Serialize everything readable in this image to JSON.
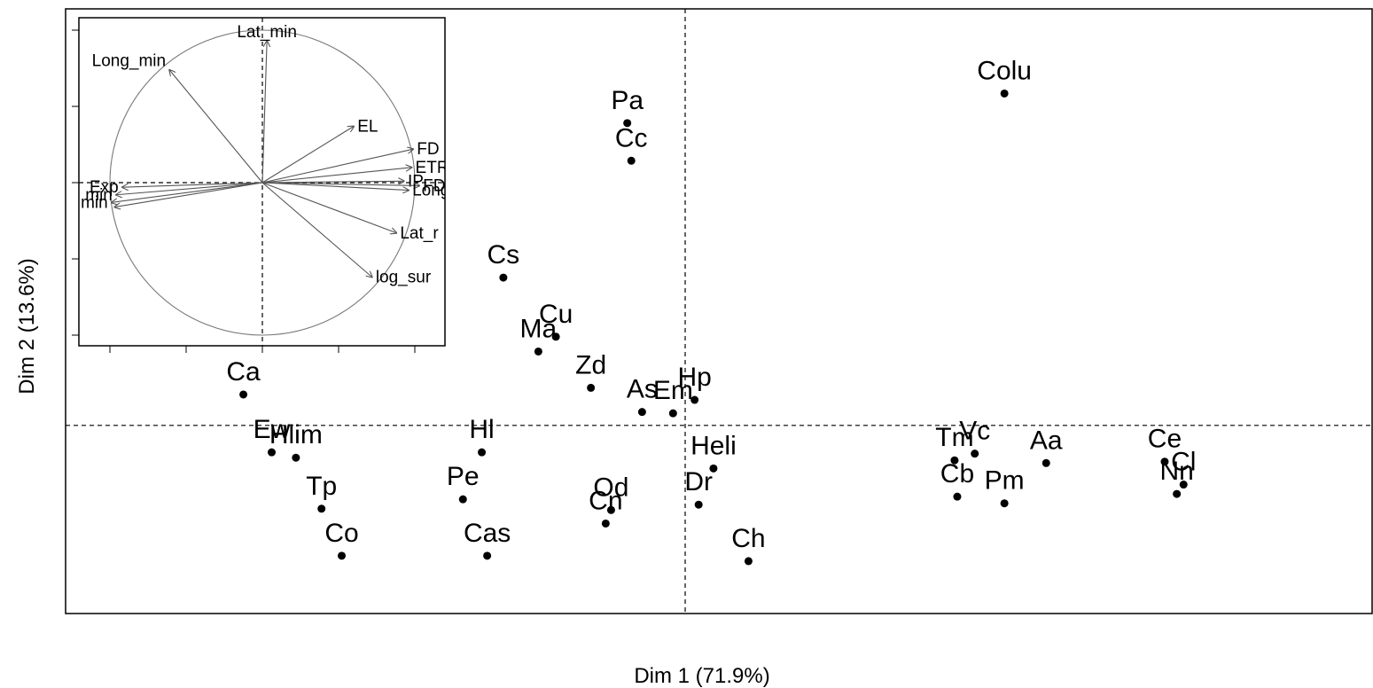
{
  "chart_data": [
    {
      "type": "scatter",
      "xlabel": "Dim 1 (71.9%)",
      "ylabel": "Dim 2 (13.6%)",
      "xlim": [
        -4.6,
        5.1
      ],
      "ylim": [
        -1.4,
        3.1
      ],
      "points": [
        {
          "label": "Colu",
          "x": 2.37,
          "y": 2.47
        },
        {
          "label": "Pa",
          "x": -0.43,
          "y": 2.25
        },
        {
          "label": "Cc",
          "x": -0.4,
          "y": 1.97
        },
        {
          "label": "Cs",
          "x": -1.35,
          "y": 1.1
        },
        {
          "label": "Cu",
          "x": -0.96,
          "y": 0.66
        },
        {
          "label": "Ma",
          "x": -1.09,
          "y": 0.55
        },
        {
          "label": "Zd",
          "x": -0.7,
          "y": 0.28
        },
        {
          "label": "As",
          "x": -0.32,
          "y": 0.1
        },
        {
          "label": "Em",
          "x": -0.09,
          "y": 0.09
        },
        {
          "label": "Hp",
          "x": 0.07,
          "y": 0.19
        },
        {
          "label": "Ca",
          "x": -3.28,
          "y": 0.23
        },
        {
          "label": "Ew",
          "x": -3.07,
          "y": -0.2
        },
        {
          "label": "Hlim",
          "x": -2.89,
          "y": -0.24
        },
        {
          "label": "Hl",
          "x": -1.51,
          "y": -0.2
        },
        {
          "label": "Heli",
          "x": 0.21,
          "y": -0.32
        },
        {
          "label": "Tp",
          "x": -2.7,
          "y": -0.62
        },
        {
          "label": "Pe",
          "x": -1.65,
          "y": -0.55
        },
        {
          "label": "Od",
          "x": -0.55,
          "y": -0.63
        },
        {
          "label": "Cn",
          "x": -0.59,
          "y": -0.73
        },
        {
          "label": "Dr",
          "x": 0.1,
          "y": -0.59
        },
        {
          "label": "Co",
          "x": -2.55,
          "y": -0.97
        },
        {
          "label": "Cas",
          "x": -1.47,
          "y": -0.97
        },
        {
          "label": "Ch",
          "x": 0.47,
          "y": -1.01
        },
        {
          "label": "Tm",
          "x": 2.0,
          "y": -0.26
        },
        {
          "label": "Vc",
          "x": 2.15,
          "y": -0.21
        },
        {
          "label": "Aa",
          "x": 2.68,
          "y": -0.28
        },
        {
          "label": "Cb",
          "x": 2.02,
          "y": -0.53
        },
        {
          "label": "Pm",
          "x": 2.37,
          "y": -0.58
        },
        {
          "label": "Ce",
          "x": 3.56,
          "y": -0.27
        },
        {
          "label": "Cl",
          "x": 3.7,
          "y": -0.44
        },
        {
          "label": "Nn",
          "x": 3.65,
          "y": -0.51
        }
      ]
    },
    {
      "type": "scatter",
      "subtype": "correlation-circle",
      "xlim": [
        -1.2,
        1.2
      ],
      "ylim": [
        -1.0,
        1.0
      ],
      "variables": [
        {
          "label": "Lat_min",
          "x": 0.03,
          "y": 0.93
        },
        {
          "label": "Long_min",
          "x": -0.61,
          "y": 0.74
        },
        {
          "label": "EL",
          "x": 0.6,
          "y": 0.37
        },
        {
          "label": "FD",
          "x": 0.99,
          "y": 0.22
        },
        {
          "label": "ETR",
          "x": 0.98,
          "y": 0.1
        },
        {
          "label": "IP",
          "x": 0.93,
          "y": 0.01
        },
        {
          "label": "FD",
          "x": 1.03,
          "y": -0.02
        },
        {
          "label": "Long",
          "x": 0.96,
          "y": -0.05
        },
        {
          "label": "Lat_r",
          "x": 0.88,
          "y": -0.33
        },
        {
          "label": "log_sur",
          "x": 0.72,
          "y": -0.62
        },
        {
          "label": "Exp",
          "x": -0.92,
          "y": -0.03
        },
        {
          "label": "min",
          "x": -0.96,
          "y": -0.08
        },
        {
          "label": "min",
          "x": -0.99,
          "y": -0.13
        },
        {
          "label": "",
          "x": -0.97,
          "y": -0.16
        }
      ]
    }
  ]
}
